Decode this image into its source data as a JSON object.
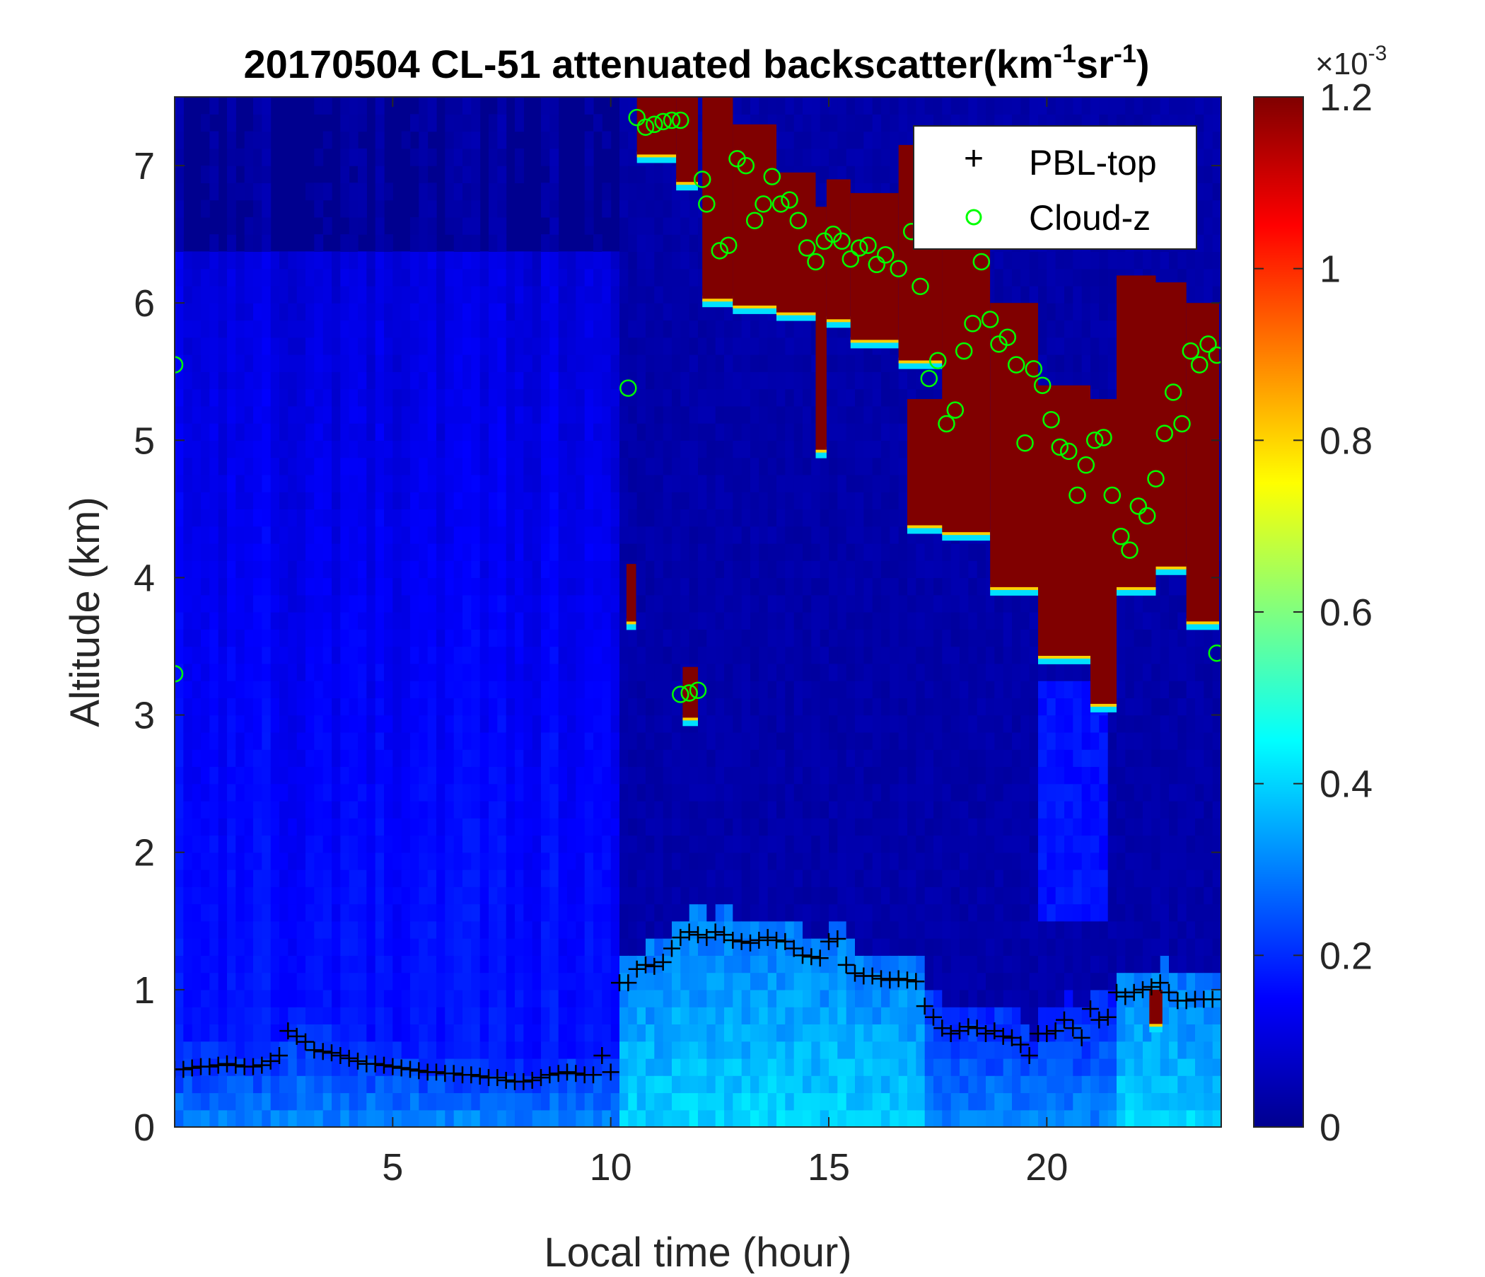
{
  "chart_data": {
    "type": "heatmap",
    "title": {
      "prefix": "20170504  CL-51 attenuated backscatter(km",
      "sup1": "-1",
      "mid": "sr",
      "sup2": "-1",
      "suffix": ")"
    },
    "xlabel": "Local time (hour)",
    "ylabel": "Altitude (km)",
    "xlim": [
      0,
      24
    ],
    "ylim": [
      0,
      7.5
    ],
    "xticks": [
      "5",
      "10",
      "15",
      "20"
    ],
    "yticks": [
      "0",
      "1",
      "2",
      "3",
      "4",
      "5",
      "6",
      "7"
    ],
    "colorbar": {
      "range": [
        0,
        0.0012
      ],
      "ticks": [
        "0",
        "0.2",
        "0.4",
        "0.6",
        "0.8",
        "1",
        "1.2"
      ],
      "multiplier_base": "×10",
      "multiplier_exp": "-3",
      "colormap": "jet"
    },
    "legend": {
      "position": "top-right",
      "entries": [
        {
          "marker": "+",
          "label": "PBL-top",
          "color": "#000000"
        },
        {
          "marker": "o",
          "label": "Cloud-z",
          "color": "#00ff00"
        }
      ]
    },
    "pbl_top": {
      "name": "PBL-top",
      "x": [
        0.0,
        0.2,
        0.4,
        0.6,
        0.8,
        1.0,
        1.2,
        1.4,
        1.6,
        1.8,
        2.0,
        2.2,
        2.4,
        2.6,
        2.8,
        3.0,
        3.2,
        3.4,
        3.6,
        3.8,
        4.0,
        4.2,
        4.4,
        4.6,
        4.8,
        5.0,
        5.2,
        5.4,
        5.6,
        5.8,
        6.0,
        6.2,
        6.4,
        6.6,
        6.8,
        7.0,
        7.2,
        7.4,
        7.6,
        7.8,
        8.0,
        8.2,
        8.4,
        8.6,
        8.8,
        9.0,
        9.2,
        9.4,
        9.6,
        9.8,
        10.0,
        10.2,
        10.4,
        10.6,
        10.8,
        11.0,
        11.2,
        11.4,
        11.6,
        11.8,
        12.0,
        12.2,
        12.4,
        12.6,
        12.8,
        13.0,
        13.2,
        13.4,
        13.6,
        13.8,
        14.0,
        14.2,
        14.4,
        14.6,
        14.8,
        15.0,
        15.2,
        15.4,
        15.6,
        15.8,
        16.0,
        16.2,
        16.4,
        16.6,
        16.8,
        17.0,
        17.2,
        17.4,
        17.6,
        17.8,
        18.0,
        18.2,
        18.4,
        18.6,
        18.8,
        19.0,
        19.2,
        19.4,
        19.6,
        19.8,
        20.0,
        20.2,
        20.4,
        20.6,
        20.8,
        21.0,
        21.2,
        21.4,
        21.6,
        21.8,
        22.0,
        22.2,
        22.4,
        22.6,
        22.8,
        23.0,
        23.2,
        23.4,
        23.6,
        23.8
      ],
      "y": [
        0.42,
        0.42,
        0.43,
        0.44,
        0.44,
        0.45,
        0.46,
        0.45,
        0.44,
        0.44,
        0.45,
        0.48,
        0.52,
        0.7,
        0.66,
        0.62,
        0.56,
        0.55,
        0.54,
        0.52,
        0.5,
        0.48,
        0.46,
        0.46,
        0.45,
        0.44,
        0.43,
        0.42,
        0.41,
        0.4,
        0.4,
        0.39,
        0.39,
        0.38,
        0.38,
        0.37,
        0.36,
        0.36,
        0.34,
        0.33,
        0.33,
        0.34,
        0.36,
        0.38,
        0.39,
        0.4,
        0.39,
        0.38,
        0.38,
        0.52,
        0.4,
        1.05,
        1.05,
        1.15,
        1.18,
        1.17,
        1.2,
        1.3,
        1.38,
        1.42,
        1.4,
        1.38,
        1.42,
        1.4,
        1.36,
        1.35,
        1.34,
        1.36,
        1.38,
        1.36,
        1.35,
        1.3,
        1.25,
        1.24,
        1.23,
        1.35,
        1.37,
        1.18,
        1.12,
        1.1,
        1.1,
        1.08,
        1.07,
        1.08,
        1.07,
        1.06,
        0.88,
        0.8,
        0.72,
        0.68,
        0.7,
        0.73,
        0.72,
        0.68,
        0.7,
        0.66,
        0.65,
        0.6,
        0.52,
        0.68,
        0.68,
        0.7,
        0.78,
        0.72,
        0.65,
        0.86,
        0.78,
        0.8,
        0.98,
        0.95,
        0.98,
        1.0,
        1.02,
        1.05,
        0.98,
        0.92,
        0.92,
        0.93,
        0.93,
        0.93
      ]
    },
    "cloud_z": {
      "name": "Cloud-z",
      "x": [
        0.0,
        0.0,
        10.4,
        10.6,
        10.8,
        11.0,
        11.2,
        11.4,
        11.6,
        11.6,
        11.8,
        12.0,
        12.1,
        12.2,
        12.5,
        12.7,
        12.9,
        13.1,
        13.3,
        13.5,
        13.7,
        13.9,
        14.1,
        14.3,
        14.5,
        14.7,
        14.9,
        15.1,
        15.3,
        15.5,
        15.7,
        15.9,
        16.1,
        16.3,
        16.6,
        16.9,
        17.1,
        17.3,
        17.5,
        17.7,
        17.9,
        18.1,
        18.3,
        18.5,
        18.7,
        18.9,
        19.1,
        19.3,
        19.5,
        19.7,
        19.9,
        20.1,
        20.3,
        20.5,
        20.7,
        20.9,
        21.1,
        21.3,
        21.5,
        21.7,
        21.9,
        22.1,
        22.3,
        22.5,
        22.7,
        22.9,
        23.1,
        23.3,
        23.5,
        23.7,
        23.9,
        23.9
      ],
      "y": [
        5.55,
        3.3,
        5.38,
        7.35,
        7.28,
        7.3,
        7.32,
        7.33,
        7.33,
        3.15,
        3.16,
        3.18,
        6.9,
        6.72,
        6.38,
        6.42,
        7.05,
        7.0,
        6.6,
        6.72,
        6.92,
        6.72,
        6.75,
        6.6,
        6.4,
        6.3,
        6.45,
        6.5,
        6.45,
        6.32,
        6.4,
        6.42,
        6.28,
        6.35,
        6.25,
        6.52,
        6.12,
        5.45,
        5.58,
        5.12,
        5.22,
        5.65,
        5.85,
        6.3,
        5.88,
        5.7,
        5.75,
        5.55,
        4.98,
        5.52,
        5.4,
        5.15,
        4.95,
        4.92,
        4.6,
        4.82,
        5.0,
        5.02,
        4.6,
        4.3,
        4.2,
        4.52,
        4.45,
        4.72,
        5.05,
        5.35,
        5.12,
        5.65,
        5.55,
        5.7,
        5.62,
        3.45
      ]
    },
    "clouds": [
      {
        "x": [
          10.36,
          10.58
        ],
        "z": [
          3.65,
          4.1
        ]
      },
      {
        "x": [
          10.6,
          11.5
        ],
        "z": [
          7.05,
          7.5
        ]
      },
      {
        "x": [
          11.5,
          12.0
        ],
        "z": [
          6.85,
          7.5
        ]
      },
      {
        "x": [
          11.65,
          12.0
        ],
        "z": [
          2.95,
          3.35
        ]
      },
      {
        "x": [
          12.1,
          12.8
        ],
        "z": [
          6.0,
          7.5
        ]
      },
      {
        "x": [
          12.8,
          13.8
        ],
        "z": [
          5.95,
          7.3
        ]
      },
      {
        "x": [
          13.8,
          14.7
        ],
        "z": [
          5.9,
          6.95
        ]
      },
      {
        "x": [
          14.7,
          14.95
        ],
        "z": [
          4.9,
          6.7
        ]
      },
      {
        "x": [
          14.95,
          15.5
        ],
        "z": [
          5.85,
          6.9
        ]
      },
      {
        "x": [
          15.5,
          16.6
        ],
        "z": [
          5.7,
          6.8
        ]
      },
      {
        "x": [
          16.6,
          17.6
        ],
        "z": [
          5.55,
          7.15
        ]
      },
      {
        "x": [
          16.8,
          17.8
        ],
        "z": [
          4.35,
          5.3
        ]
      },
      {
        "x": [
          17.6,
          18.7
        ],
        "z": [
          4.3,
          6.55
        ]
      },
      {
        "x": [
          18.7,
          19.8
        ],
        "z": [
          3.9,
          6.0
        ]
      },
      {
        "x": [
          19.8,
          21.0
        ],
        "z": [
          3.4,
          5.4
        ]
      },
      {
        "x": [
          21.0,
          21.6
        ],
        "z": [
          3.05,
          5.3
        ]
      },
      {
        "x": [
          21.6,
          22.5
        ],
        "z": [
          3.9,
          6.2
        ]
      },
      {
        "x": [
          22.5,
          23.2
        ],
        "z": [
          4.05,
          6.15
        ]
      },
      {
        "x": [
          23.2,
          23.95
        ],
        "z": [
          3.65,
          6.0
        ]
      },
      {
        "x": [
          22.35,
          22.65
        ],
        "z": [
          0.72,
          1.0
        ]
      }
    ]
  }
}
